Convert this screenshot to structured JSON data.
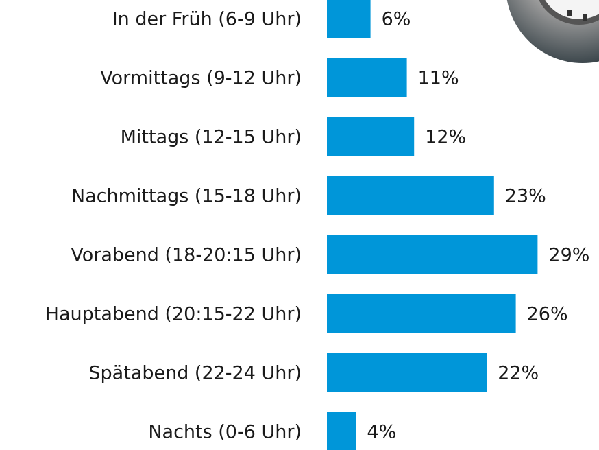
{
  "chart_data": {
    "type": "bar",
    "orientation": "horizontal",
    "categories": [
      "In der Früh (6-9 Uhr)",
      "Vormittags (9-12 Uhr)",
      "Mittags (12-15 Uhr)",
      "Nachmittags (15-18 Uhr)",
      "Vorabend (18-20:15 Uhr)",
      "Hauptabend (20:15-22 Uhr)",
      "Spätabend (22-24 Uhr)",
      "Nachts (0-6 Uhr)"
    ],
    "values": [
      6,
      11,
      12,
      23,
      29,
      26,
      22,
      4
    ],
    "value_labels": [
      "6%",
      "11%",
      "12%",
      "23%",
      "29%",
      "26%",
      "22%",
      "4%"
    ],
    "color": "#0096d9"
  }
}
